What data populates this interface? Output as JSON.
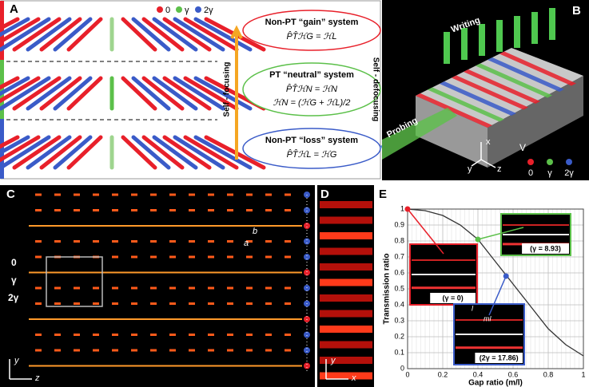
{
  "panel_a": {
    "label": "A",
    "legend": [
      "0",
      "γ",
      "2γ"
    ],
    "boxes": [
      {
        "title": "Non-PT “gain” system",
        "equations": [
          "P̂T̂ℋG = ℋL"
        ]
      },
      {
        "title": "PT “neutral” system",
        "equations": [
          "P̂T̂ℋN = ℋN",
          "ℋN = (ℋG + ℋL)/2"
        ]
      },
      {
        "title": "Non-PT “loss” system",
        "equations": [
          "P̂T̂ℋL = ℋG"
        ]
      }
    ],
    "focusing": "Self - focusing",
    "defocusing": "Self - defocusing"
  },
  "panel_b": {
    "label": "B",
    "writing": "Writing",
    "probing": "Probing",
    "axes": [
      "x",
      "y",
      "z"
    ],
    "v": "V",
    "legend": [
      "0",
      "γ",
      "2γ"
    ]
  },
  "panel_c": {
    "label": "C",
    "a": "a",
    "b": "b",
    "rows": [
      "0",
      "γ",
      "2γ"
    ],
    "axes": [
      "y",
      "z"
    ]
  },
  "panel_d": {
    "label": "D",
    "axes": [
      "y",
      "x"
    ]
  },
  "chart_data": {
    "type": "line",
    "label": "E",
    "xlabel": "Gap ratio (m/l)",
    "ylabel": "Transmission ratio",
    "x": [
      0,
      0.1,
      0.2,
      0.3,
      0.4,
      0.5,
      0.6,
      0.7,
      0.8,
      0.9,
      1.0
    ],
    "series": [
      {
        "color": "#333333",
        "values": [
          1,
          0.99,
          0.96,
          0.9,
          0.81,
          0.67,
          0.53,
          0.39,
          0.25,
          0.15,
          0.08
        ]
      }
    ],
    "points": {
      "x": [
        0,
        0.4,
        0.56
      ],
      "values": [
        1,
        0.81,
        0.58
      ],
      "colors": [
        "#e8202a",
        "#5cc04a",
        "#3a5bc8"
      ]
    },
    "insets": [
      "(γ = 0)",
      "(γ = 8.93)",
      "(2γ = 17.86)"
    ],
    "inset_marks": [
      "l",
      "ml"
    ],
    "xlim": [
      0,
      1
    ],
    "ylim": [
      0,
      1
    ],
    "xticks": [
      0,
      0.2,
      0.4,
      0.6,
      0.8,
      1
    ],
    "yticks": [
      0,
      0.1,
      0.2,
      0.3,
      0.4,
      0.5,
      0.6,
      0.7,
      0.8,
      0.9,
      1
    ],
    "grid": true
  }
}
